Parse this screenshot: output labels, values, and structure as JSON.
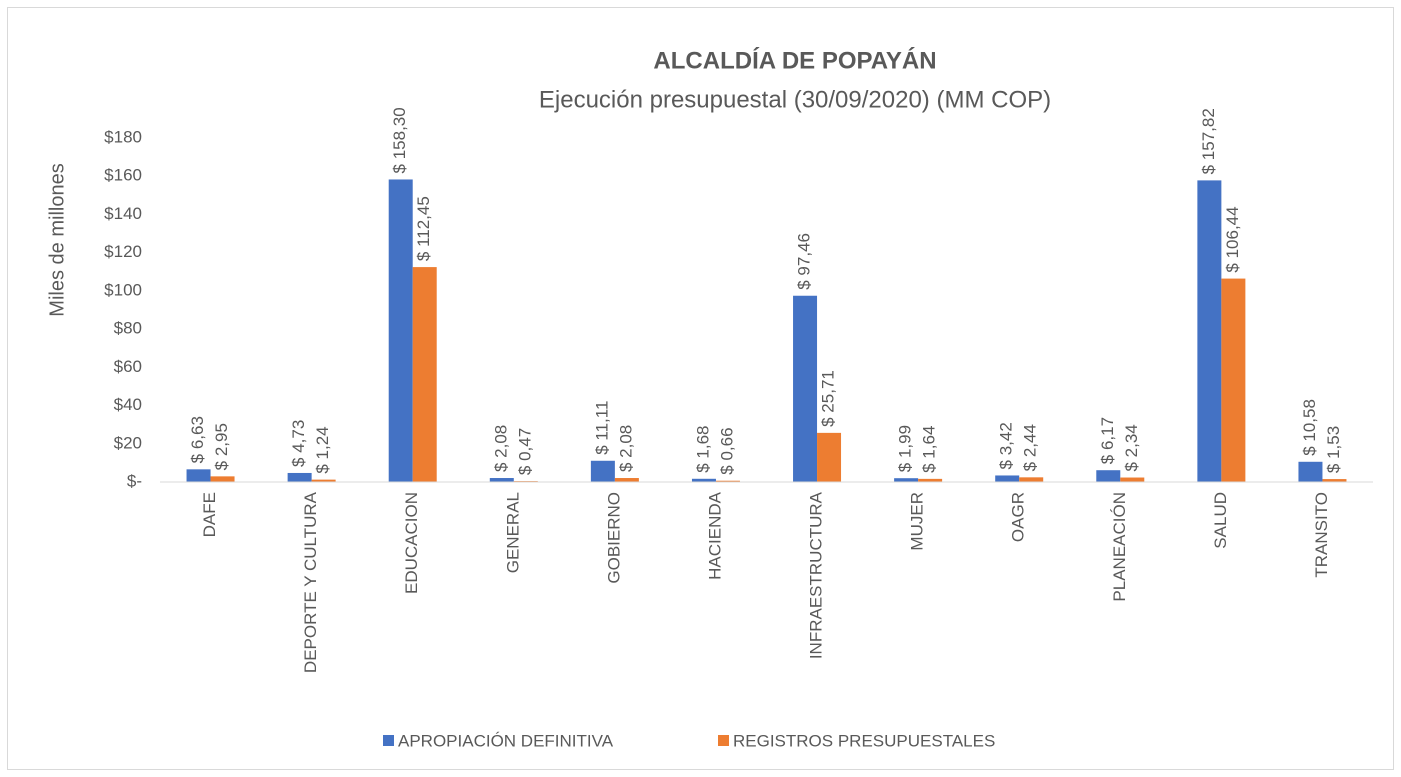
{
  "chart_data": {
    "type": "bar",
    "title": "ALCALDÍA DE POPAYÁN",
    "subtitle": "Ejecución presupuestal (30/09/2020) (MM COP)",
    "y_label": "Miles de millones",
    "categories": [
      "DAFE",
      "DEPORTE Y CULTURA",
      "EDUCACION",
      "GENERAL",
      "GOBIERNO",
      "HACIENDA",
      "INFRAESTRUCTURA",
      "MUJER",
      "OAGR",
      "PLANEACIÓN",
      "SALUD",
      "TRANSITO"
    ],
    "series": [
      {
        "name": "APROPIACIÓN DEFINITIVA",
        "color": "#4472c4",
        "values": [
          6.63,
          4.73,
          158.3,
          2.08,
          11.11,
          1.68,
          97.46,
          1.99,
          3.42,
          6.17,
          157.82,
          10.58
        ],
        "value_labels": [
          "$ 6,63",
          "$ 4,73",
          "$ 158,30",
          "$ 2,08",
          "$ 11,11",
          "$ 1,68",
          "$ 97,46",
          "$ 1,99",
          "$ 3,42",
          "$ 6,17",
          "$ 157,82",
          "$ 10,58"
        ]
      },
      {
        "name": "REGISTROS PRESUPUESTALES",
        "color": "#ed7d31",
        "values": [
          2.95,
          1.24,
          112.45,
          0.47,
          2.08,
          0.66,
          25.71,
          1.64,
          2.44,
          2.34,
          106.44,
          1.53
        ],
        "value_labels": [
          "$ 2,95",
          "$ 1,24",
          "$ 112,45",
          "$ 0,47",
          "$ 2,08",
          "$ 0,66",
          "$ 25,71",
          "$ 1,64",
          "$ 2,44",
          "$ 2,34",
          "$ 106,44",
          "$ 1,53"
        ]
      }
    ],
    "ylim": [
      0,
      180
    ],
    "yticks": [
      {
        "value": 0,
        "label": "$-"
      },
      {
        "value": 20,
        "label": "$20"
      },
      {
        "value": 40,
        "label": "$40"
      },
      {
        "value": 60,
        "label": "$60"
      },
      {
        "value": 80,
        "label": "$80"
      },
      {
        "value": 100,
        "label": "$100"
      },
      {
        "value": 120,
        "label": "$120"
      },
      {
        "value": 140,
        "label": "$140"
      },
      {
        "value": 160,
        "label": "$160"
      },
      {
        "value": 180,
        "label": "$180"
      }
    ],
    "grid": false,
    "legend": "bottom"
  }
}
